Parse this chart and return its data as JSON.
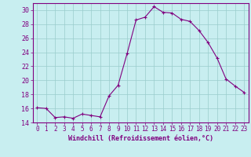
{
  "x": [
    0,
    1,
    2,
    3,
    4,
    5,
    6,
    7,
    8,
    9,
    10,
    11,
    12,
    13,
    14,
    15,
    16,
    17,
    18,
    19,
    20,
    21,
    22,
    23
  ],
  "y": [
    16.1,
    16.0,
    14.7,
    14.8,
    14.6,
    15.2,
    15.0,
    14.8,
    17.8,
    19.3,
    23.8,
    28.6,
    29.0,
    30.5,
    29.7,
    29.6,
    28.7,
    28.4,
    27.1,
    25.4,
    23.2,
    20.2,
    19.2,
    18.3
  ],
  "line_color": "#800080",
  "marker": "+",
  "marker_color": "#800080",
  "bg_color": "#c8eef0",
  "grid_color": "#99cccc",
  "xlabel": "Windchill (Refroidissement éolien,°C)",
  "ylim": [
    14,
    31
  ],
  "xlim": [
    -0.5,
    23.5
  ],
  "yticks": [
    14,
    16,
    18,
    20,
    22,
    24,
    26,
    28,
    30
  ],
  "xticks": [
    0,
    1,
    2,
    3,
    4,
    5,
    6,
    7,
    8,
    9,
    10,
    11,
    12,
    13,
    14,
    15,
    16,
    17,
    18,
    19,
    20,
    21,
    22,
    23
  ],
  "tick_color": "#800080",
  "spine_color": "#800080",
  "xlabel_color": "#800080"
}
